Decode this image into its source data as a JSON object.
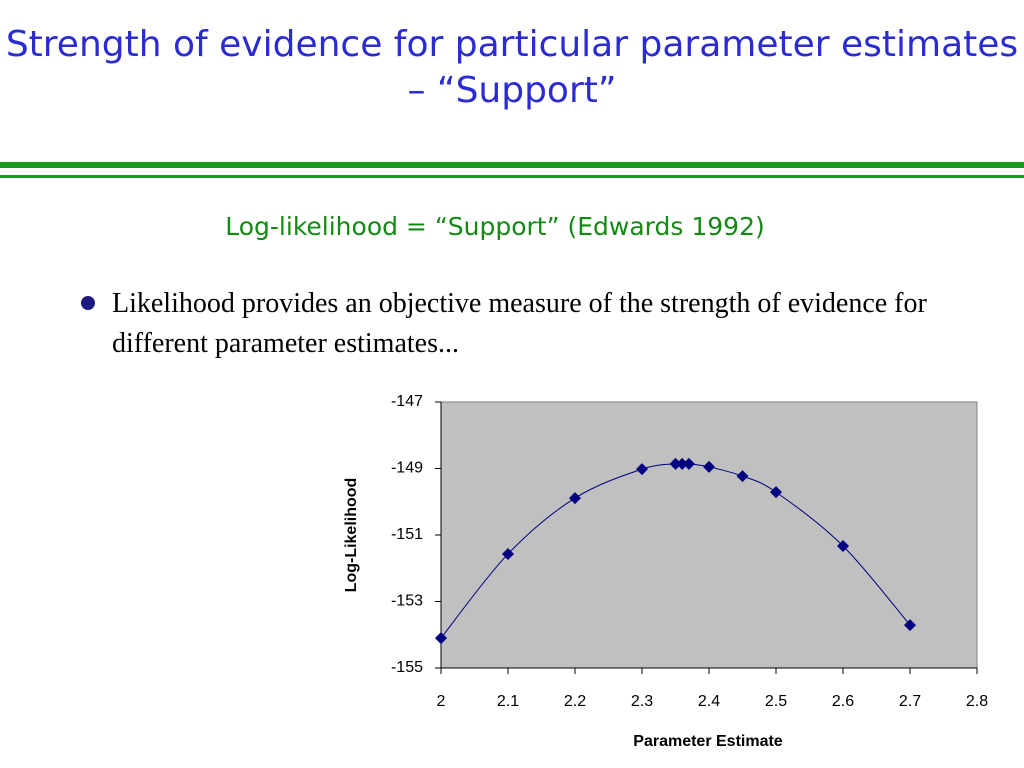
{
  "header": {
    "title": "Strength of evidence for particular parameter estimates – “Support”"
  },
  "subtitle": "Log-likelihood = “Support”  (Edwards 1992)",
  "bullet": "Likelihood provides an objective measure of the strength of evidence for different parameter estimates...",
  "chart_data": {
    "type": "scatter",
    "x_label": "Parameter Estimate",
    "y_label": "Log-Likelihood",
    "x": [
      2.0,
      2.1,
      2.2,
      2.3,
      2.35,
      2.36,
      2.37,
      2.4,
      2.45,
      2.5,
      2.6,
      2.7
    ],
    "values": [
      -154.1,
      -151.57,
      -149.89,
      -149.02,
      -148.86,
      -148.86,
      -148.86,
      -148.95,
      -149.23,
      -149.71,
      -151.33,
      -153.71
    ],
    "color": "#000080",
    "xlim": [
      2,
      2.8
    ],
    "xticks": [
      2,
      2.1,
      2.2,
      2.3,
      2.4,
      2.5,
      2.6,
      2.7,
      2.8
    ],
    "ylim": [
      -155,
      -147
    ],
    "yticks": [
      -147,
      -149,
      -151,
      -153,
      -155
    ],
    "background": "#c0c0c0"
  }
}
